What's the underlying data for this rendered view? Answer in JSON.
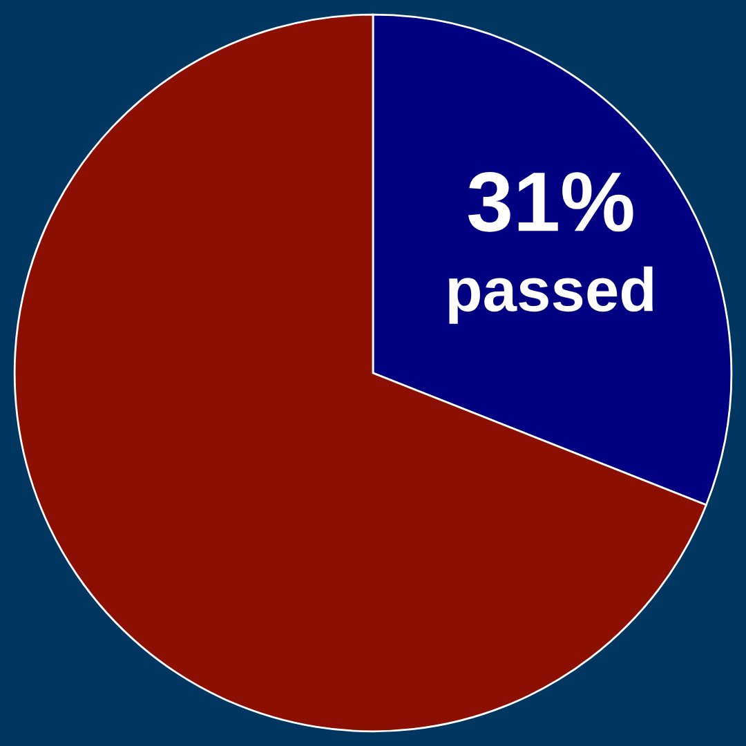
{
  "chart_data": {
    "type": "pie",
    "categories": [
      "passed",
      null
    ],
    "values": [
      31,
      69
    ],
    "value_labels": [
      "31%",
      null
    ],
    "colors": [
      "#000080",
      "#8b0f02"
    ],
    "legend": false
  }
}
